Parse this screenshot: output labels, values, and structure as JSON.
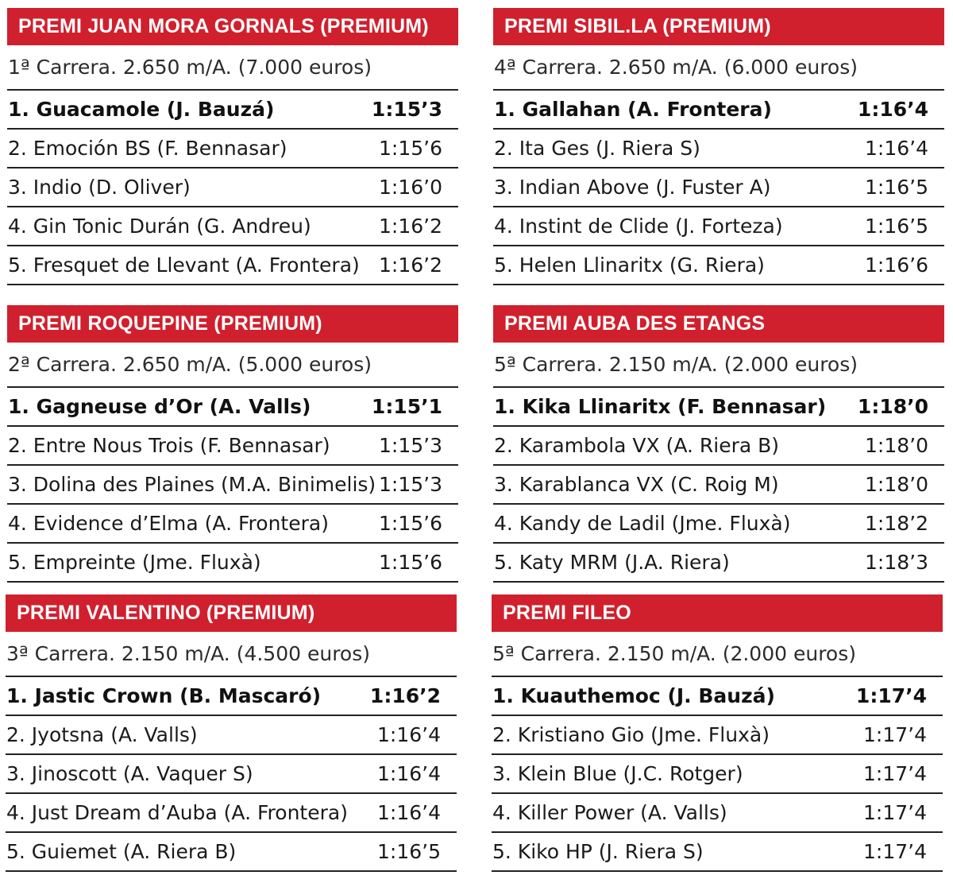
{
  "races": [
    {
      "title": "PREMI JUAN MORA GORNALS (PREMIUM)",
      "info": "1ª Carrera. 2.650 m/A. (7.000 euros)",
      "results": [
        {
          "horse": "1. Guacamole (J. Bauzá)",
          "time": "1:15’3"
        },
        {
          "horse": "2. Emoción BS (F. Bennasar)",
          "time": "1:15’6"
        },
        {
          "horse": "3. Indio (D. Oliver)",
          "time": "1:16’0"
        },
        {
          "horse": "4. Gin Tonic Durán (G. Andreu)",
          "time": "1:16’2"
        },
        {
          "horse": "5. Fresquet de Llevant (A. Frontera)",
          "time": "1:16’2"
        }
      ]
    },
    {
      "title": "PREMI SIBIL.LA (PREMIUM)",
      "info": "4ª Carrera. 2.650 m/A. (6.000 euros)",
      "results": [
        {
          "horse": "1. Gallahan (A. Frontera)",
          "time": "1:16’4"
        },
        {
          "horse": "2. Ita Ges (J. Riera S)",
          "time": "1:16’4"
        },
        {
          "horse": "3. Indian Above (J. Fuster A)",
          "time": "1:16’5"
        },
        {
          "horse": "4. Instint de Clide (J. Forteza)",
          "time": "1:16’5"
        },
        {
          "horse": "5. Helen Llinaritx (G. Riera)",
          "time": "1:16’6"
        }
      ]
    },
    {
      "title": "PREMI ROQUEPINE (PREMIUM)",
      "info": "2ª Carrera. 2.650 m/A. (5.000 euros)",
      "results": [
        {
          "horse": "1. Gagneuse d’Or (A. Valls)",
          "time": "1:15’1"
        },
        {
          "horse": "2. Entre Nous Trois (F. Bennasar)",
          "time": "1:15’3"
        },
        {
          "horse": "3. Dolina des Plaines (M.A. Binimelis)",
          "time": "1:15’3"
        },
        {
          "horse": "4. Evidence d’Elma (A. Frontera)",
          "time": "1:15’6"
        },
        {
          "horse": "5. Empreinte (Jme. Fluxà)",
          "time": "1:15’6"
        }
      ]
    },
    {
      "title": "PREMI AUBA DES ETANGS",
      "info": "5ª Carrera. 2.150 m/A. (2.000 euros)",
      "results": [
        {
          "horse": "1. Kika Llinaritx (F. Bennasar)",
          "time": "1:18’0"
        },
        {
          "horse": "2. Karambola VX (A. Riera B)",
          "time": "1:18’0"
        },
        {
          "horse": "3. Karablanca VX (C. Roig M)",
          "time": "1:18’0"
        },
        {
          "horse": "4. Kandy de Ladil (Jme. Fluxà)",
          "time": "1:18’2"
        },
        {
          "horse": "5. Katy MRM (J.A. Riera)",
          "time": "1:18’3"
        }
      ]
    },
    {
      "title": "PREMI VALENTINO (PREMIUM)",
      "info": "3ª Carrera. 2.150 m/A. (4.500 euros)",
      "results": [
        {
          "horse": "1. Jastic Crown (B. Mascaró)",
          "time": "1:16’2"
        },
        {
          "horse": "2. Jyotsna (A. Valls)",
          "time": "1:16’4"
        },
        {
          "horse": "3. Jinoscott (A. Vaquer S)",
          "time": "1:16’4"
        },
        {
          "horse": "4. Just Dream d’Auba (A. Frontera)",
          "time": "1:16’4"
        },
        {
          "horse": "5. Guiemet (A. Riera B)",
          "time": "1:16’5"
        }
      ]
    },
    {
      "title": "PREMI FILEO",
      "info": "5ª Carrera. 2.150 m/A. (2.000 euros)",
      "results": [
        {
          "horse": "1. Kuauthemoc (J. Bauzá)",
          "time": "1:17’4"
        },
        {
          "horse": "2. Kristiano Gio (Jme. Fluxà)",
          "time": "1:17’4"
        },
        {
          "horse": "3. Klein Blue (J.C. Rotger)",
          "time": "1:17’4"
        },
        {
          "horse": "4. Killer Power (A. Valls)",
          "time": "1:17’4"
        },
        {
          "horse": "5. Kiko HP (J. Riera S)",
          "time": "1:17’4"
        }
      ]
    }
  ],
  "colors": {
    "header_bg": "#d0202e",
    "header_text": "#ffffff",
    "rule": "#222222"
  }
}
